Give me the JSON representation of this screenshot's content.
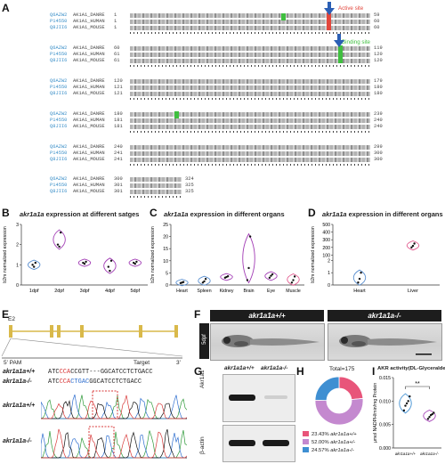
{
  "panels": {
    "a": "A",
    "b": "B",
    "c": "C",
    "d": "D",
    "e": "E",
    "f": "F",
    "g": "G",
    "h": "H",
    "i": "I"
  },
  "alignment": {
    "markers": {
      "active_site": "Active site",
      "binding_site": "Binding site"
    },
    "ids": [
      "Q6AZW2",
      "P14550",
      "Q8JII6"
    ],
    "names": [
      "AK1A1_DANRE",
      "AK1A1_HUMAN",
      "AK1A1_MOUSE"
    ],
    "blocks": [
      {
        "start": [
          "1",
          "1",
          "1"
        ],
        "end": [
          "59",
          "60",
          "60"
        ]
      },
      {
        "start": [
          "60",
          "61",
          "61"
        ],
        "end": [
          "119",
          "120",
          "120"
        ]
      },
      {
        "start": [
          "120",
          "121",
          "121"
        ],
        "end": [
          "179",
          "180",
          "180"
        ]
      },
      {
        "start": [
          "180",
          "181",
          "181"
        ],
        "end": [
          "239",
          "240",
          "240"
        ]
      },
      {
        "start": [
          "240",
          "241",
          "241"
        ],
        "end": [
          "299",
          "300",
          "300"
        ]
      },
      {
        "start": [
          "300",
          "301",
          "301"
        ],
        "end": [
          "324",
          "325",
          "325"
        ]
      }
    ],
    "colors": {
      "active": "#e2463c",
      "binding": "#3fbf3f",
      "arrow": "#2b5fb5"
    }
  },
  "chart_data": [
    {
      "type": "violin",
      "panel": "B",
      "gene": "akr1a1a",
      "title_rest": " expression at different satges",
      "ylabel": "b2m normalized expression",
      "ylim": [
        0,
        3
      ],
      "yticks": [
        "0",
        "1",
        "2",
        "3"
      ],
      "categories": [
        "1dpf",
        "2dpf",
        "3dpf",
        "4dpf",
        "5dpf"
      ],
      "values": [
        [
          1.0,
          0.9,
          1.1
        ],
        [
          2.0,
          1.9,
          2.6
        ],
        [
          1.1,
          1.05,
          1.15
        ],
        [
          0.9,
          0.7,
          1.2
        ],
        [
          1.1,
          1.05,
          1.15
        ]
      ],
      "colors": [
        "#5a8fd0",
        "#a23cb5",
        "#a23cb5",
        "#a23cb5",
        "#a23cb5"
      ]
    },
    {
      "type": "violin",
      "panel": "C",
      "gene": "akr1a1a",
      "title_rest": " expression in different organs",
      "ylabel": "b2m normalized expression",
      "ylim": [
        0,
        25
      ],
      "yticks": [
        "0",
        "5",
        "10",
        "15",
        "20",
        "25"
      ],
      "categories": [
        "Heart",
        "Spleen",
        "Kidney",
        "Brain",
        "Eye",
        "Muscle"
      ],
      "values": [
        [
          0.8,
          1.0,
          1.2
        ],
        [
          1.0,
          1.5,
          2.5
        ],
        [
          3.0,
          3.3,
          3.6
        ],
        [
          2.0,
          7.0,
          20.0
        ],
        [
          3.0,
          3.8,
          4.4
        ],
        [
          1.0,
          2.0,
          3.5
        ]
      ],
      "colors": [
        "#5a8fd0",
        "#5a8fd0",
        "#a23cb5",
        "#a23cb5",
        "#a23cb5",
        "#e0548a"
      ]
    },
    {
      "type": "violin",
      "panel": "D",
      "gene": "akr1a1a",
      "title_rest": " expression in different organs",
      "ylabel": "b2m normalized expression",
      "ylim": [
        0,
        500
      ],
      "ybreak": [
        2,
        100
      ],
      "yticks": [
        "0",
        "1",
        "2",
        "100",
        "200",
        "300",
        "400",
        "500"
      ],
      "categories": [
        "Heart",
        "Liver"
      ],
      "values": [
        [
          0.2,
          0.5,
          1.0
        ],
        [
          200,
          220,
          250
        ]
      ],
      "colors": [
        "#5a8fd0",
        "#e0548a"
      ]
    },
    {
      "type": "donut",
      "panel": "H",
      "title": "Total=175",
      "labels": [
        "akr1a1a+/+",
        "akr1a1a+/-",
        "akr1a1a-/-"
      ],
      "percents": [
        "23.43%",
        "52.00%",
        "24.57%"
      ],
      "values": [
        23.43,
        52.0,
        24.57
      ],
      "colors": [
        "#e8557a",
        "#c489cf",
        "#3f8fd2"
      ]
    },
    {
      "type": "violin",
      "panel": "I",
      "title": "AKR activity(DL-Glyceraldehyde)",
      "ylabel": "μmol NADPH/min/mg Protein",
      "ylim": [
        0,
        0.015
      ],
      "yticks": [
        "0.000",
        "0.005",
        "0.010",
        "0.015"
      ],
      "categories": [
        "akr1a1a+/+",
        "akr1a1a-/-"
      ],
      "values": [
        [
          0.008,
          0.009,
          0.0095,
          0.01,
          0.011
        ],
        [
          0.0062,
          0.0066,
          0.007,
          0.0072,
          0.0075
        ]
      ],
      "colors": [
        "#3f8fd2",
        "#a23cb5"
      ],
      "significance": "**"
    }
  ],
  "gene_model": {
    "exon_label": "E2",
    "pam_label": "5' PAM",
    "target_label": "Target",
    "end_label": "3'",
    "wt_label": "akr1a1a+/+",
    "ko_label": "akr1a1a-/-",
    "wt_seq": {
      "a": "ATC",
      "b": "CCA",
      "c": "CCGTT---GGCATCCTCTGACC"
    },
    "ko_seq": {
      "a": "ATC",
      "b": "CCA",
      "c": "CTGAC",
      "d": "GGCATCCTCTGACC"
    },
    "seq_colors": {
      "base": "#111111",
      "red": "#d83a3a",
      "blue": "#2f6fcf"
    }
  },
  "fish": {
    "wt_label": "akr1a1a+/+",
    "ko_label": "akr1a1a-/-",
    "stage": "5dpf"
  },
  "western": {
    "wt_label": "akr1a1a+/+",
    "ko_label": "akr1a1a-/-",
    "band1": "Akr1a1",
    "band2": "β-actin"
  }
}
